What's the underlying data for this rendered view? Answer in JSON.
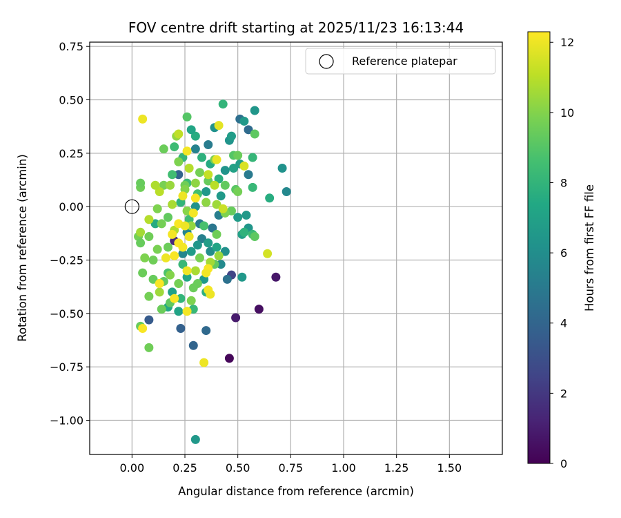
{
  "chart_data": {
    "type": "scatter",
    "title": "FOV centre drift starting at 2025/11/23 16:13:44",
    "xlabel": "Angular distance from reference (arcmin)",
    "ylabel": "Rotation from reference (arcmin)",
    "colorbar_label": "Hours from first FF file",
    "xlim": [
      -0.2,
      1.75
    ],
    "ylim": [
      -1.16,
      0.77
    ],
    "clim": [
      0,
      12.3
    ],
    "grid": true,
    "legend_position": "upper right",
    "xticks": [
      {
        "value": 0.0,
        "label": "0.00"
      },
      {
        "value": 0.25,
        "label": "0.25"
      },
      {
        "value": 0.5,
        "label": "0.50"
      },
      {
        "value": 0.75,
        "label": "0.75"
      },
      {
        "value": 1.0,
        "label": "1.00"
      },
      {
        "value": 1.25,
        "label": "1.25"
      },
      {
        "value": 1.5,
        "label": "1.50"
      }
    ],
    "yticks": [
      {
        "value": 0.75,
        "label": "0.75"
      },
      {
        "value": 0.5,
        "label": "0.50"
      },
      {
        "value": 0.25,
        "label": "0.25"
      },
      {
        "value": 0.0,
        "label": "0.00"
      },
      {
        "value": -0.25,
        "label": "−0.25"
      },
      {
        "value": -0.5,
        "label": "−0.50"
      },
      {
        "value": -0.75,
        "label": "−0.75"
      },
      {
        "value": -1.0,
        "label": "−1.00"
      }
    ],
    "colorbar_ticks": [
      {
        "value": 0,
        "label": "0"
      },
      {
        "value": 2,
        "label": "2"
      },
      {
        "value": 4,
        "label": "4"
      },
      {
        "value": 6,
        "label": "6"
      },
      {
        "value": 8,
        "label": "8"
      },
      {
        "value": 10,
        "label": "10"
      },
      {
        "value": 12,
        "label": "12"
      }
    ],
    "reference": {
      "label": "Reference platepar",
      "x": 0.0,
      "y": 0.0
    },
    "points": [
      {
        "x": 0.46,
        "y": -0.71,
        "h": 0.2
      },
      {
        "x": 0.6,
        "y": -0.48,
        "h": 0.5
      },
      {
        "x": 0.68,
        "y": -0.33,
        "h": 0.8
      },
      {
        "x": 0.49,
        "y": -0.52,
        "h": 0.9
      },
      {
        "x": 0.2,
        "y": -0.16,
        "h": 1.5
      },
      {
        "x": 0.47,
        "y": -0.32,
        "h": 2.5
      },
      {
        "x": 0.08,
        "y": -0.53,
        "h": 3.5
      },
      {
        "x": 0.23,
        "y": -0.57,
        "h": 3.8
      },
      {
        "x": 0.29,
        "y": -0.65,
        "h": 4.0
      },
      {
        "x": 0.35,
        "y": -0.58,
        "h": 4.2
      },
      {
        "x": 0.51,
        "y": 0.41,
        "h": 4.5
      },
      {
        "x": 0.55,
        "y": 0.36,
        "h": 4.3
      },
      {
        "x": 0.22,
        "y": 0.15,
        "h": 4.0
      },
      {
        "x": 0.45,
        "y": -0.34,
        "h": 4.6
      },
      {
        "x": 0.38,
        "y": -0.1,
        "h": 4.8
      },
      {
        "x": 0.32,
        "y": -0.08,
        "h": 5.0
      },
      {
        "x": 0.41,
        "y": -0.04,
        "h": 5.2
      },
      {
        "x": 0.55,
        "y": 0.15,
        "h": 5.0
      },
      {
        "x": 0.3,
        "y": 0.27,
        "h": 5.4
      },
      {
        "x": 0.36,
        "y": 0.29,
        "h": 5.1
      },
      {
        "x": 0.26,
        "y": -0.12,
        "h": 5.5
      },
      {
        "x": 0.33,
        "y": -0.15,
        "h": 5.3
      },
      {
        "x": 0.42,
        "y": -0.27,
        "h": 5.8
      },
      {
        "x": 0.24,
        "y": -0.22,
        "h": 5.6
      },
      {
        "x": 0.37,
        "y": -0.21,
        "h": 5.9
      },
      {
        "x": 0.3,
        "y": -1.09,
        "h": 6.5
      },
      {
        "x": 0.73,
        "y": 0.07,
        "h": 5.7
      },
      {
        "x": 0.71,
        "y": 0.18,
        "h": 6.2
      },
      {
        "x": 0.58,
        "y": 0.45,
        "h": 6.4
      },
      {
        "x": 0.53,
        "y": 0.4,
        "h": 6.6
      },
      {
        "x": 0.46,
        "y": 0.31,
        "h": 6.3
      },
      {
        "x": 0.47,
        "y": 0.33,
        "h": 6.8
      },
      {
        "x": 0.39,
        "y": 0.37,
        "h": 6.2
      },
      {
        "x": 0.52,
        "y": -0.33,
        "h": 6.5
      },
      {
        "x": 0.44,
        "y": -0.21,
        "h": 6.1
      },
      {
        "x": 0.5,
        "y": -0.05,
        "h": 6.7
      },
      {
        "x": 0.54,
        "y": -0.04,
        "h": 6.6
      },
      {
        "x": 0.52,
        "y": -0.13,
        "h": 6.9
      },
      {
        "x": 0.55,
        "y": -0.1,
        "h": 6.4
      },
      {
        "x": 0.48,
        "y": 0.18,
        "h": 7.0
      },
      {
        "x": 0.51,
        "y": 0.2,
        "h": 6.8
      },
      {
        "x": 0.44,
        "y": 0.17,
        "h": 6.3
      },
      {
        "x": 0.42,
        "y": 0.05,
        "h": 6.6
      },
      {
        "x": 0.35,
        "y": 0.07,
        "h": 6.5
      },
      {
        "x": 0.3,
        "y": 0.0,
        "h": 6.2
      },
      {
        "x": 0.28,
        "y": -0.21,
        "h": 6.7
      },
      {
        "x": 0.31,
        "y": -0.18,
        "h": 6.4
      },
      {
        "x": 0.36,
        "y": -0.17,
        "h": 6.8
      },
      {
        "x": 0.34,
        "y": -0.34,
        "h": 6.6
      },
      {
        "x": 0.4,
        "y": -0.19,
        "h": 7.2
      },
      {
        "x": 0.19,
        "y": -0.4,
        "h": 7.0
      },
      {
        "x": 0.17,
        "y": -0.47,
        "h": 7.4
      },
      {
        "x": 0.22,
        "y": -0.49,
        "h": 7.1
      },
      {
        "x": 0.11,
        "y": -0.08,
        "h": 7.5
      },
      {
        "x": 0.26,
        "y": -0.33,
        "h": 7.3
      },
      {
        "x": 0.3,
        "y": 0.33,
        "h": 7.6
      },
      {
        "x": 0.28,
        "y": 0.36,
        "h": 7.2
      },
      {
        "x": 0.33,
        "y": 0.23,
        "h": 7.8
      },
      {
        "x": 0.37,
        "y": 0.2,
        "h": 7.5
      },
      {
        "x": 0.41,
        "y": 0.13,
        "h": 7.7
      },
      {
        "x": 0.43,
        "y": 0.48,
        "h": 8.0
      },
      {
        "x": 0.57,
        "y": 0.09,
        "h": 8.2
      },
      {
        "x": 0.65,
        "y": 0.04,
        "h": 7.6
      },
      {
        "x": 0.57,
        "y": 0.23,
        "h": 8.1
      },
      {
        "x": 0.53,
        "y": -0.12,
        "h": 7.9
      },
      {
        "x": 0.57,
        "y": -0.13,
        "h": 8.3
      },
      {
        "x": 0.35,
        "y": -0.4,
        "h": 7.8
      },
      {
        "x": 0.29,
        "y": -0.48,
        "h": 8.2
      },
      {
        "x": 0.23,
        "y": -0.43,
        "h": 8.0
      },
      {
        "x": 0.2,
        "y": 0.28,
        "h": 8.4
      },
      {
        "x": 0.24,
        "y": 0.23,
        "h": 8.1
      },
      {
        "x": 0.19,
        "y": 0.15,
        "h": 8.5
      },
      {
        "x": 0.26,
        "y": 0.11,
        "h": 8.3
      },
      {
        "x": 0.31,
        "y": 0.06,
        "h": 8.6
      },
      {
        "x": 0.23,
        "y": 0.02,
        "h": 8.0
      },
      {
        "x": 0.27,
        "y": -0.06,
        "h": 8.4
      },
      {
        "x": 0.34,
        "y": -0.09,
        "h": 8.7
      },
      {
        "x": 0.24,
        "y": -0.27,
        "h": 8.2
      },
      {
        "x": 0.17,
        "y": -0.31,
        "h": 8.8
      },
      {
        "x": 0.26,
        "y": 0.42,
        "h": 9.0
      },
      {
        "x": 0.58,
        "y": 0.34,
        "h": 9.2
      },
      {
        "x": 0.48,
        "y": 0.24,
        "h": 9.0
      },
      {
        "x": 0.44,
        "y": 0.1,
        "h": 9.3
      },
      {
        "x": 0.49,
        "y": 0.08,
        "h": 9.1
      },
      {
        "x": 0.47,
        "y": -0.02,
        "h": 9.4
      },
      {
        "x": 0.58,
        "y": -0.14,
        "h": 9.2
      },
      {
        "x": 0.39,
        "y": -0.27,
        "h": 9.3
      },
      {
        "x": 0.31,
        "y": -0.36,
        "h": 9.5
      },
      {
        "x": 0.04,
        "y": -0.56,
        "h": 9.4
      },
      {
        "x": 0.08,
        "y": -0.66,
        "h": 9.6
      },
      {
        "x": 0.14,
        "y": -0.48,
        "h": 9.5
      },
      {
        "x": 0.18,
        "y": -0.45,
        "h": 9.2
      },
      {
        "x": 0.08,
        "y": -0.42,
        "h": 9.7
      },
      {
        "x": 0.1,
        "y": -0.34,
        "h": 9.4
      },
      {
        "x": 0.13,
        "y": -0.36,
        "h": 9.8
      },
      {
        "x": 0.15,
        "y": -0.35,
        "h": 9.3
      },
      {
        "x": 0.1,
        "y": -0.25,
        "h": 9.6
      },
      {
        "x": 0.05,
        "y": -0.31,
        "h": 9.5
      },
      {
        "x": 0.06,
        "y": -0.24,
        "h": 9.9
      },
      {
        "x": 0.03,
        "y": -0.14,
        "h": 9.7
      },
      {
        "x": 0.04,
        "y": -0.17,
        "h": 9.4
      },
      {
        "x": 0.08,
        "y": -0.14,
        "h": 9.6
      },
      {
        "x": 0.12,
        "y": -0.2,
        "h": 9.8
      },
      {
        "x": 0.17,
        "y": -0.19,
        "h": 9.5
      },
      {
        "x": 0.14,
        "y": -0.08,
        "h": 9.7
      },
      {
        "x": 0.17,
        "y": -0.05,
        "h": 9.3
      },
      {
        "x": 0.12,
        "y": -0.01,
        "h": 9.9
      },
      {
        "x": 0.04,
        "y": 0.09,
        "h": 9.6
      },
      {
        "x": 0.04,
        "y": 0.11,
        "h": 9.4
      },
      {
        "x": 0.15,
        "y": 0.1,
        "h": 9.8
      },
      {
        "x": 0.15,
        "y": 0.27,
        "h": 9.5
      },
      {
        "x": 0.22,
        "y": 0.21,
        "h": 9.9
      },
      {
        "x": 0.25,
        "y": 0.1,
        "h": 9.6
      },
      {
        "x": 0.32,
        "y": 0.16,
        "h": 9.7
      },
      {
        "x": 0.36,
        "y": 0.12,
        "h": 9.4
      },
      {
        "x": 0.39,
        "y": 0.22,
        "h": 9.8
      },
      {
        "x": 0.5,
        "y": 0.24,
        "h": 9.5
      },
      {
        "x": 0.5,
        "y": 0.07,
        "h": 9.7
      },
      {
        "x": 0.44,
        "y": -0.03,
        "h": 9.9
      },
      {
        "x": 0.4,
        "y": -0.13,
        "h": 9.6
      },
      {
        "x": 0.32,
        "y": -0.24,
        "h": 9.8
      },
      {
        "x": 0.29,
        "y": -0.38,
        "h": 9.5
      },
      {
        "x": 0.28,
        "y": -0.44,
        "h": 9.9
      },
      {
        "x": 0.22,
        "y": -0.36,
        "h": 9.7
      },
      {
        "x": 0.18,
        "y": -0.32,
        "h": 10.0
      },
      {
        "x": 0.26,
        "y": -0.02,
        "h": 10.1
      },
      {
        "x": 0.3,
        "y": 0.11,
        "h": 10.2
      },
      {
        "x": 0.21,
        "y": 0.33,
        "h": 10.3
      },
      {
        "x": 0.25,
        "y": 0.08,
        "h": 10.0
      },
      {
        "x": 0.18,
        "y": 0.1,
        "h": 10.4
      },
      {
        "x": 0.35,
        "y": 0.02,
        "h": 10.2
      },
      {
        "x": 0.4,
        "y": 0.01,
        "h": 10.5
      },
      {
        "x": 0.28,
        "y": -0.09,
        "h": 10.3
      },
      {
        "x": 0.37,
        "y": -0.26,
        "h": 10.6
      },
      {
        "x": 0.41,
        "y": -0.23,
        "h": 10.4
      },
      {
        "x": 0.3,
        "y": -0.3,
        "h": 10.7
      },
      {
        "x": 0.13,
        "y": -0.4,
        "h": 10.5
      },
      {
        "x": 0.2,
        "y": -0.11,
        "h": 10.8
      },
      {
        "x": 0.04,
        "y": -0.12,
        "h": 10.6
      },
      {
        "x": 0.08,
        "y": -0.06,
        "h": 10.9
      },
      {
        "x": 0.19,
        "y": 0.01,
        "h": 10.7
      },
      {
        "x": 0.13,
        "y": 0.07,
        "h": 11.0
      },
      {
        "x": 0.11,
        "y": 0.1,
        "h": 10.8
      },
      {
        "x": 0.22,
        "y": 0.34,
        "h": 11.1
      },
      {
        "x": 0.27,
        "y": 0.18,
        "h": 10.9
      },
      {
        "x": 0.36,
        "y": 0.15,
        "h": 11.2
      },
      {
        "x": 0.39,
        "y": 0.1,
        "h": 11.0
      },
      {
        "x": 0.43,
        "y": -0.01,
        "h": 11.3
      },
      {
        "x": 0.64,
        "y": -0.22,
        "h": 11.5
      },
      {
        "x": 0.53,
        "y": 0.19,
        "h": 11.6
      },
      {
        "x": 0.41,
        "y": 0.38,
        "h": 11.8
      },
      {
        "x": 0.4,
        "y": 0.22,
        "h": 11.9
      },
      {
        "x": 0.05,
        "y": 0.41,
        "h": 12.0
      },
      {
        "x": 0.26,
        "y": 0.26,
        "h": 12.1
      },
      {
        "x": 0.24,
        "y": 0.05,
        "h": 12.0
      },
      {
        "x": 0.3,
        "y": 0.04,
        "h": 12.2
      },
      {
        "x": 0.29,
        "y": -0.03,
        "h": 12.1
      },
      {
        "x": 0.22,
        "y": -0.08,
        "h": 12.2
      },
      {
        "x": 0.25,
        "y": -0.09,
        "h": 12.0
      },
      {
        "x": 0.19,
        "y": -0.13,
        "h": 12.1
      },
      {
        "x": 0.22,
        "y": -0.17,
        "h": 12.2
      },
      {
        "x": 0.27,
        "y": -0.14,
        "h": 12.0
      },
      {
        "x": 0.24,
        "y": -0.19,
        "h": 12.1
      },
      {
        "x": 0.2,
        "y": -0.23,
        "h": 12.2
      },
      {
        "x": 0.16,
        "y": -0.24,
        "h": 12.0
      },
      {
        "x": 0.36,
        "y": -0.29,
        "h": 12.2
      },
      {
        "x": 0.35,
        "y": -0.31,
        "h": 12.1
      },
      {
        "x": 0.26,
        "y": -0.3,
        "h": 12.0
      },
      {
        "x": 0.13,
        "y": -0.36,
        "h": 12.2
      },
      {
        "x": 0.36,
        "y": -0.39,
        "h": 12.1
      },
      {
        "x": 0.37,
        "y": -0.41,
        "h": 12.0
      },
      {
        "x": 0.2,
        "y": -0.43,
        "h": 12.2
      },
      {
        "x": 0.26,
        "y": -0.49,
        "h": 12.1
      },
      {
        "x": 0.05,
        "y": -0.57,
        "h": 12.2
      },
      {
        "x": 0.34,
        "y": -0.73,
        "h": 12.0
      }
    ]
  },
  "colors": {
    "grid": "#b0b0b0",
    "axis": "#000000",
    "legend_border": "#cccccc"
  }
}
